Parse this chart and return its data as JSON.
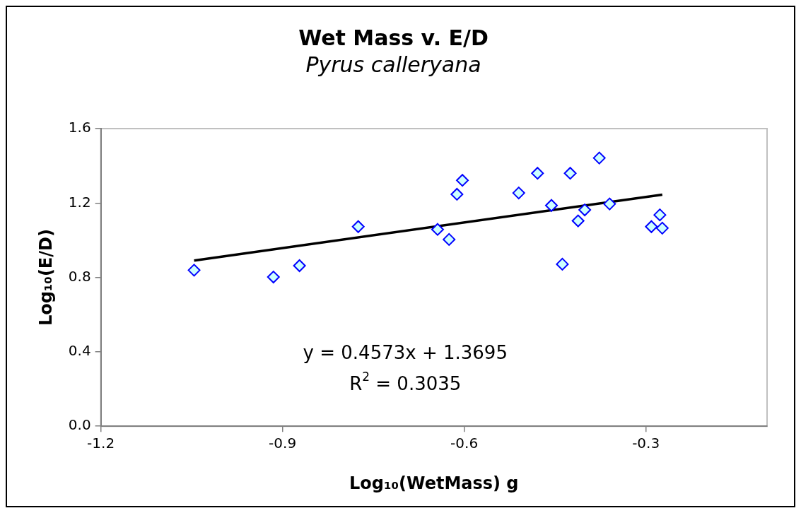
{
  "chart_data": {
    "type": "scatter",
    "title": "Wet Mass v. E/D",
    "subtitle": "Pyrus calleryana",
    "xlabel": "Log₁₀(WetMass) g",
    "ylabel": "Log₁₀(E/D)",
    "xlim": [
      -1.2,
      -0.1
    ],
    "xticks": [
      -1.2,
      -0.9,
      -0.6,
      -0.3
    ],
    "ylim": [
      0,
      1.6
    ],
    "yticks": [
      {
        "value": 0,
        "label": "0.0"
      },
      0.4,
      0.8,
      1.2,
      1.6
    ],
    "grid": false,
    "legend": false,
    "annotations": [
      "y = 0.4573x + 1.3695",
      "R$^{2}$ = 0.3035"
    ],
    "series": [
      {
        "type": "scatter",
        "marker": "diamond",
        "color": "#0000ff",
        "x": [
          -1.046,
          -0.915,
          -0.872,
          -0.775,
          -0.644,
          -0.625,
          -0.612,
          -0.603,
          -0.51,
          -0.479,
          -0.456,
          -0.438,
          -0.425,
          -0.412,
          -0.401,
          -0.377,
          -0.36,
          -0.291,
          -0.277,
          -0.273
        ],
        "values": [
          0.839,
          0.802,
          0.863,
          1.073,
          1.058,
          1.004,
          1.247,
          1.322,
          1.254,
          1.36,
          1.187,
          0.871,
          1.36,
          1.104,
          1.163,
          1.442,
          1.195,
          1.073,
          1.136,
          1.065
        ]
      },
      {
        "type": "line",
        "marker": "none",
        "line_style": "solid",
        "color": "#000000",
        "x": [
          -1.046,
          -0.273
        ],
        "values": [
          0.891,
          1.245
        ]
      }
    ]
  }
}
